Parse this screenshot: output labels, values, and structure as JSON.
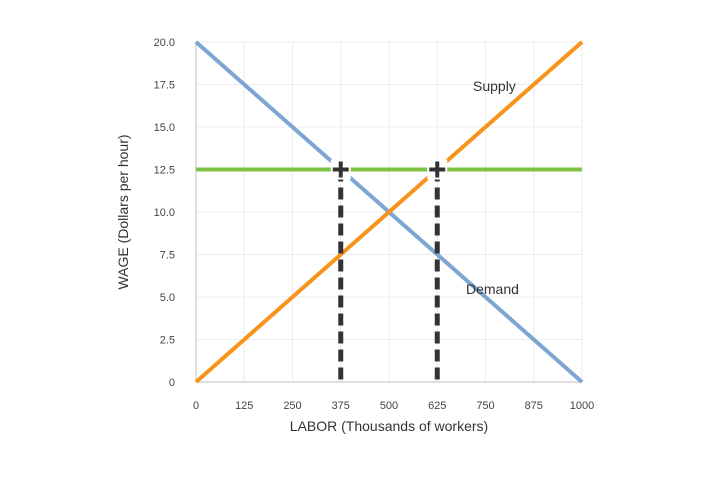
{
  "chart_data": {
    "type": "line",
    "xlabel": "LABOR (Thousands of workers)",
    "ylabel": "WAGE (Dollars per hour)",
    "xlim": [
      0,
      1000
    ],
    "ylim": [
      0,
      20
    ],
    "x_ticks": [
      "0",
      "125",
      "250",
      "375",
      "500",
      "625",
      "750",
      "875",
      "1000"
    ],
    "y_ticks": [
      "0",
      "2.5",
      "5.0",
      "7.5",
      "10.0",
      "12.5",
      "15.0",
      "17.5",
      "20.0"
    ],
    "grid": true,
    "series": [
      {
        "name": "Supply",
        "color": "#f7941d",
        "points": [
          [
            0,
            0
          ],
          [
            1000,
            20
          ]
        ]
      },
      {
        "name": "Demand",
        "color": "#7ea6d3",
        "points": [
          [
            0,
            20
          ],
          [
            1000,
            0
          ]
        ]
      }
    ],
    "horizontal_line": {
      "y": 12.5,
      "color": "#7dc242"
    },
    "vertical_dashed_lines": [
      {
        "x": 375,
        "y": 12.5
      },
      {
        "x": 625,
        "y": 12.5
      }
    ],
    "markers": [
      {
        "x": 375,
        "y": 12.5,
        "symbol": "plus"
      },
      {
        "x": 625,
        "y": 12.5,
        "symbol": "plus"
      }
    ]
  }
}
